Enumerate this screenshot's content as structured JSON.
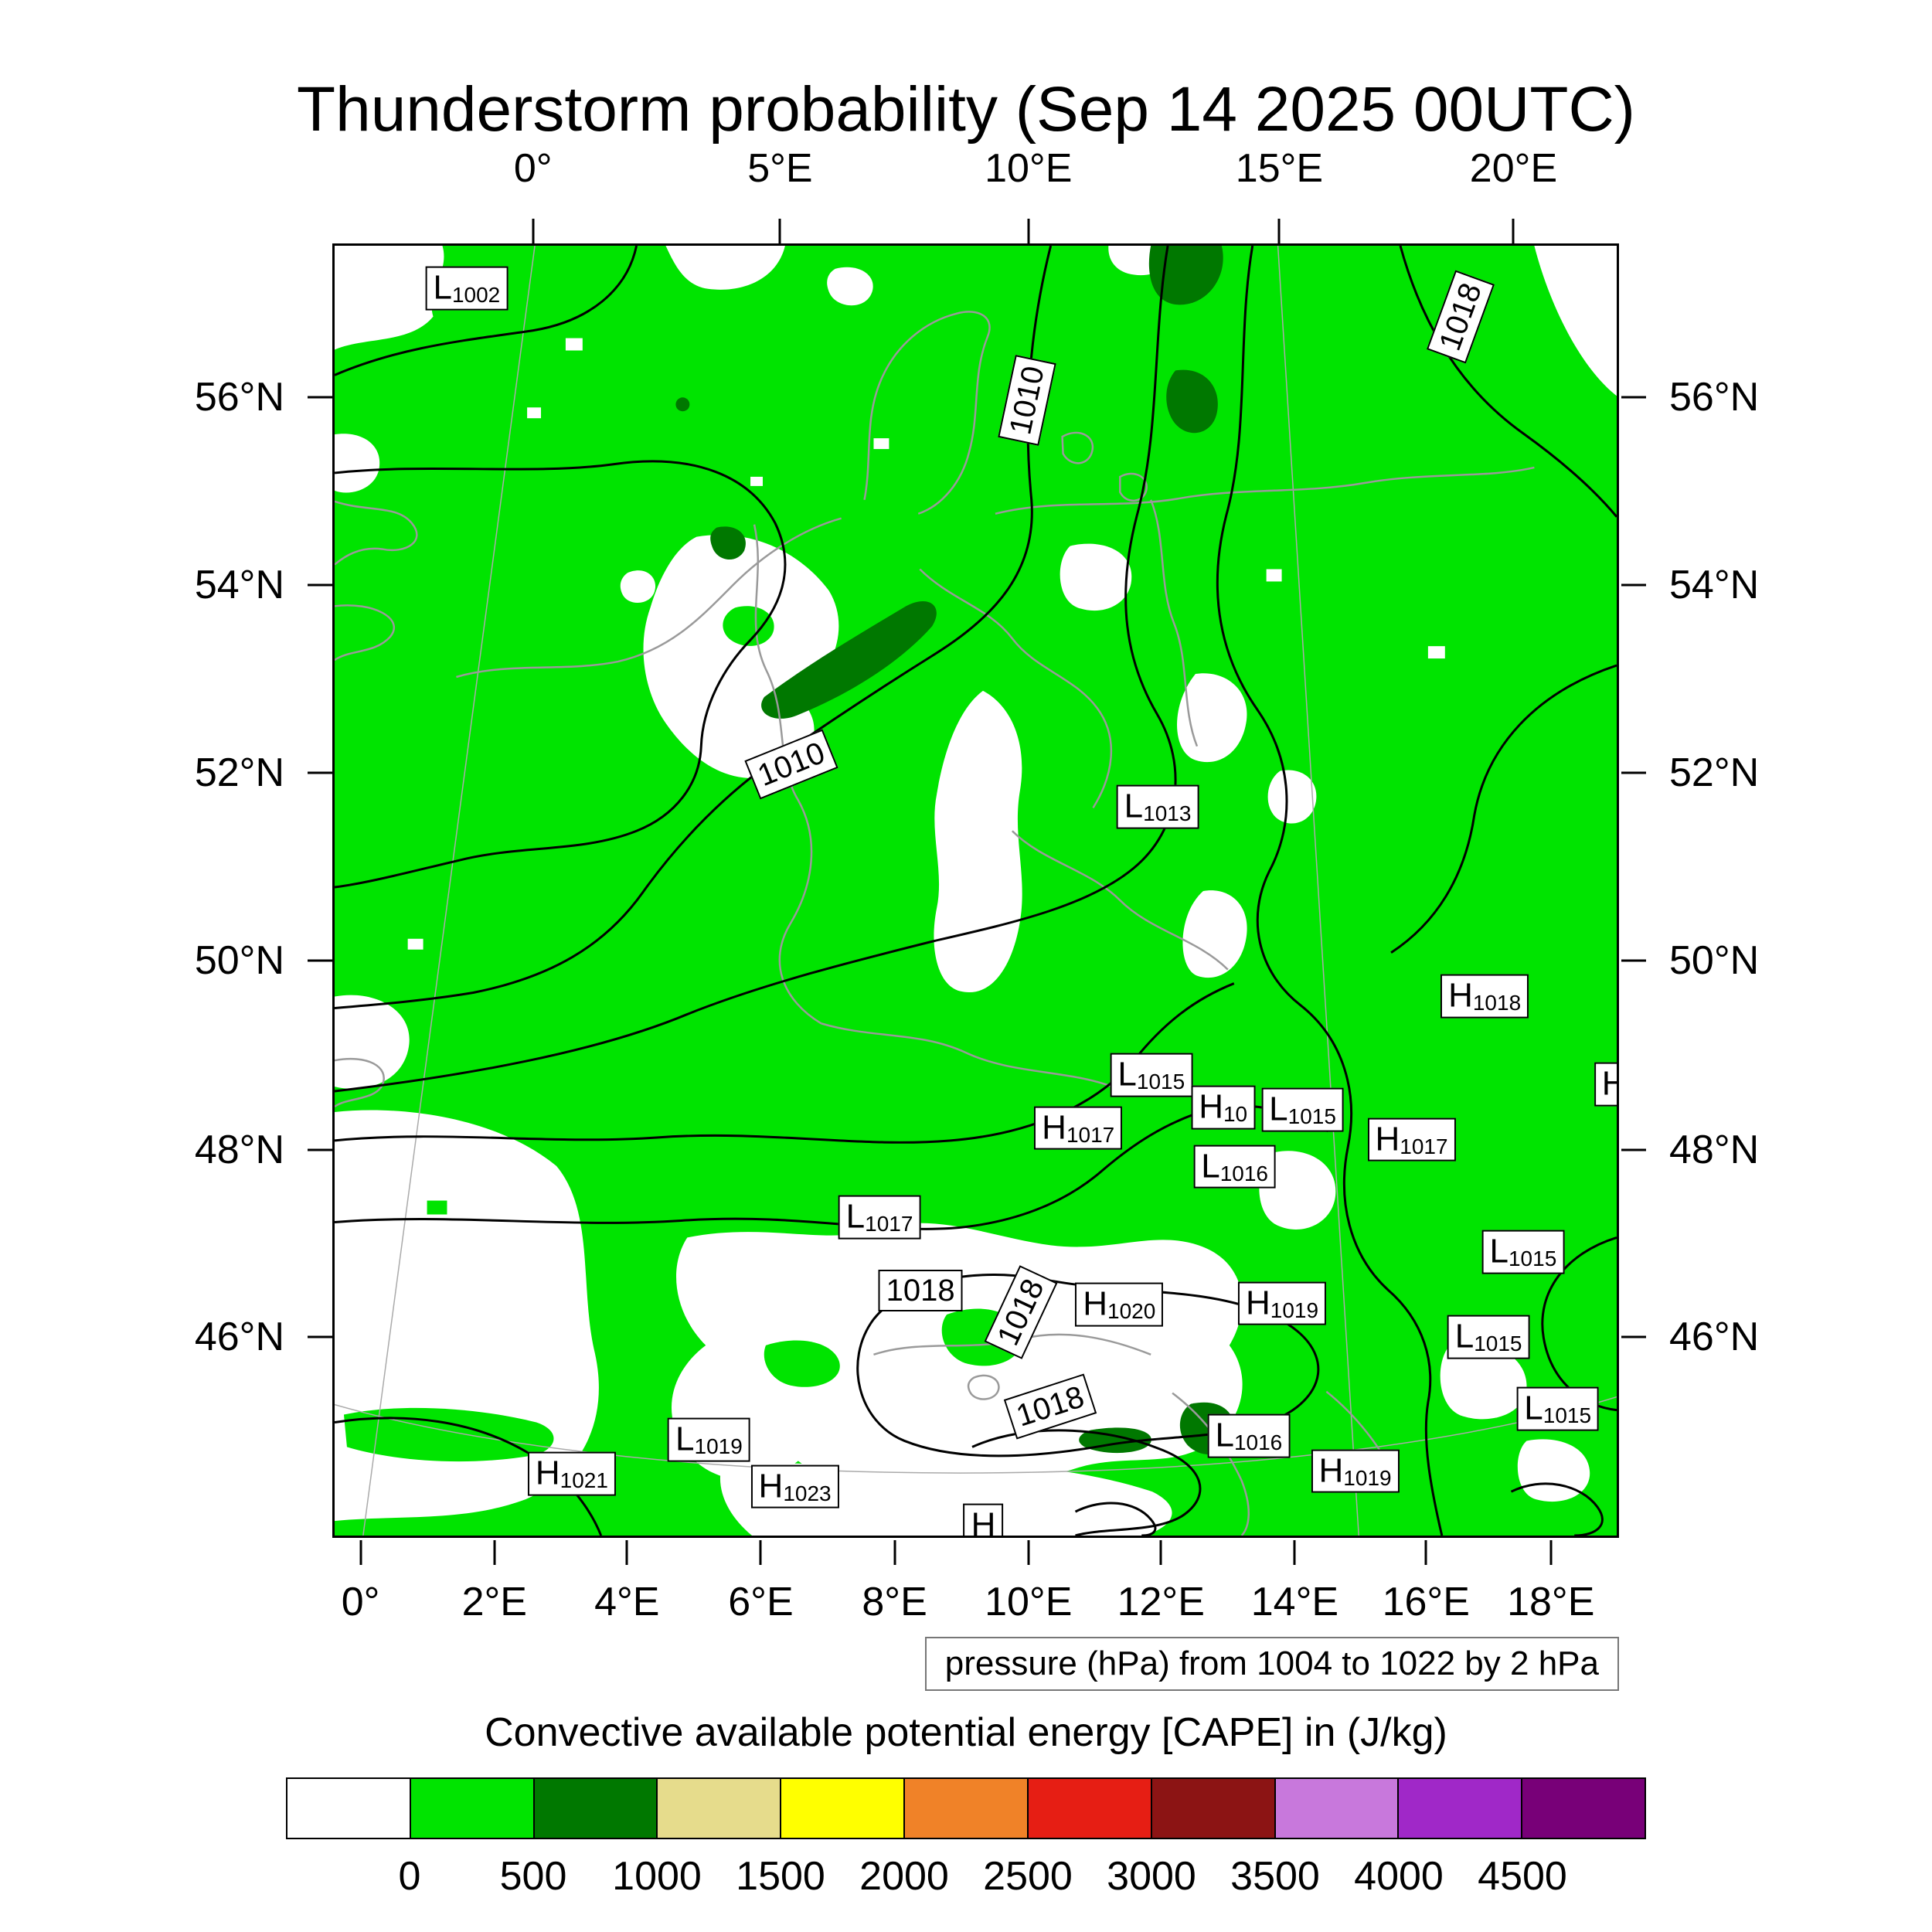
{
  "title": "Thunderstorm probability (Sep 14 2025 00UTC)",
  "caption": "pressure (hPa) from 1004 to 1022 by 2 hPa",
  "colorbar": {
    "title": "Convective available potential energy [CAPE] in (J/kg)",
    "colors": [
      "#ffffff",
      "#00e400",
      "#007800",
      "#e6dc8c",
      "#ffff00",
      "#f08228",
      "#e61e14",
      "#8c1414",
      "#c878dc",
      "#a028c8",
      "#780078"
    ],
    "tick_labels": [
      "0",
      "500",
      "1000",
      "1500",
      "2000",
      "2500",
      "3000",
      "3500",
      "4000",
      "4500"
    ]
  },
  "chart_data": {
    "type": "heatmap",
    "title": "Thunderstorm probability (Sep 14 2025 00UTC)",
    "fill_variable": "Convective available potential energy [CAPE] in (J/kg)",
    "fill_levels": [
      0,
      500,
      1000,
      1500,
      2000,
      2500,
      3000,
      3500,
      4000,
      4500
    ],
    "fill_note": "Map shading is dominated by the 0-500 J/kg class (green) with scattered 500-1000 J/kg patches (dark green); white areas indicate no CAPE shading",
    "overlay": "mean sea level pressure contours from 1004 to 1022 hPa every 2 hPa",
    "axes": {
      "lon_top": [
        {
          "label": "0°",
          "pct": 15.6
        },
        {
          "label": "5°E",
          "pct": 34.8
        },
        {
          "label": "10°E",
          "pct": 54.1
        },
        {
          "label": "15°E",
          "pct": 73.6
        },
        {
          "label": "20°E",
          "pct": 91.8
        }
      ],
      "lon_bottom": [
        {
          "label": "0°",
          "pct": 2.2
        },
        {
          "label": "2°E",
          "pct": 12.6
        },
        {
          "label": "4°E",
          "pct": 22.9
        },
        {
          "label": "6°E",
          "pct": 33.3
        },
        {
          "label": "8°E",
          "pct": 43.7
        },
        {
          "label": "10°E",
          "pct": 54.1
        },
        {
          "label": "12°E",
          "pct": 64.4
        },
        {
          "label": "14°E",
          "pct": 74.8
        },
        {
          "label": "16°E",
          "pct": 85.0
        },
        {
          "label": "18°E",
          "pct": 94.7
        }
      ],
      "lat": [
        {
          "label": "56°N",
          "pct": 11.9
        },
        {
          "label": "54°N",
          "pct": 26.4
        },
        {
          "label": "52°N",
          "pct": 40.9
        },
        {
          "label": "50°N",
          "pct": 55.4
        },
        {
          "label": "48°N",
          "pct": 70.0
        },
        {
          "label": "46°N",
          "pct": 84.5
        }
      ]
    },
    "pressure_centers": [
      {
        "type": "L",
        "value": "1002",
        "x": 10.3,
        "y": 3.3
      },
      {
        "type": "L",
        "value": "1013",
        "x": 64.2,
        "y": 43.5
      },
      {
        "type": "H",
        "value": "1018",
        "x": 89.7,
        "y": 58.2
      },
      {
        "type": "L",
        "value": "1015",
        "x": 63.7,
        "y": 64.3
      },
      {
        "type": "H",
        "value": "1017",
        "x": 58.0,
        "y": 68.4
      },
      {
        "type": "H",
        "value": "10",
        "x": 69.3,
        "y": 66.8
      },
      {
        "type": "L",
        "value": "1015",
        "x": 75.5,
        "y": 67.0
      },
      {
        "type": "H",
        "value": "1017",
        "x": 84.0,
        "y": 69.3
      },
      {
        "type": "L",
        "value": "1016",
        "x": 70.2,
        "y": 71.4
      },
      {
        "type": "L",
        "value": "1017",
        "x": 42.5,
        "y": 75.3
      },
      {
        "type": "H",
        "value": "1020",
        "x": 61.2,
        "y": 82.1
      },
      {
        "type": "H",
        "value": "1019",
        "x": 73.9,
        "y": 82.0
      },
      {
        "type": "L",
        "value": "1015",
        "x": 92.7,
        "y": 78.0
      },
      {
        "type": "L",
        "value": "1015",
        "x": 90.0,
        "y": 84.6
      },
      {
        "type": "L",
        "value": "1016",
        "x": 71.3,
        "y": 92.3
      },
      {
        "type": "L",
        "value": "1015",
        "x": 95.4,
        "y": 90.2
      },
      {
        "type": "L",
        "value": "1019",
        "x": 29.2,
        "y": 92.6
      },
      {
        "type": "H",
        "value": "1021",
        "x": 18.5,
        "y": 95.2
      },
      {
        "type": "H",
        "value": "1023",
        "x": 35.9,
        "y": 96.2
      },
      {
        "type": "H",
        "value": "1019",
        "x": 79.6,
        "y": 95.0
      },
      {
        "type": "H",
        "value": "",
        "x": 50.6,
        "y": 99.2
      },
      {
        "type": "H",
        "value": "",
        "x": 99.8,
        "y": 65.0
      }
    ],
    "isobar_labels": [
      {
        "text": "1010",
        "x": 54.0,
        "y": 12.0,
        "rot": -78
      },
      {
        "text": "1018",
        "x": 87.8,
        "y": 5.5,
        "rot": -70
      },
      {
        "text": "1010",
        "x": 35.6,
        "y": 40.2,
        "rot": -22
      },
      {
        "text": "1018",
        "x": 45.7,
        "y": 81.0,
        "rot": 0
      },
      {
        "text": "1018",
        "x": 53.5,
        "y": 82.7,
        "rot": -65
      },
      {
        "text": "1018",
        "x": 55.8,
        "y": 90.0,
        "rot": -18
      }
    ]
  }
}
